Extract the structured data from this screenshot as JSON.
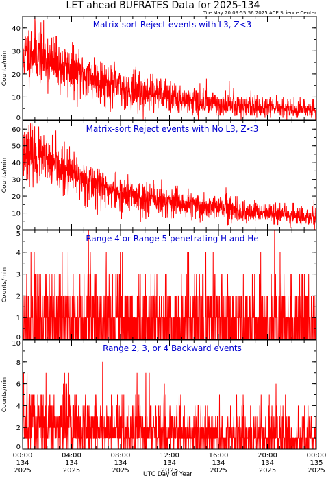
{
  "header": {
    "title": "LET ahead BUFRATES Data for 2025-134",
    "timestamp": "Tue May 20 09:55:56 2025 ACE Science Center"
  },
  "xaxis": {
    "label": "UTC Day of Year",
    "ticks": [
      {
        "time": "00:00",
        "doy": "134",
        "year": "2025"
      },
      {
        "time": "04:00",
        "doy": "134",
        "year": "2025"
      },
      {
        "time": "08:00",
        "doy": "134",
        "year": "2025"
      },
      {
        "time": "12:00",
        "doy": "134",
        "year": "2025"
      },
      {
        "time": "16:00",
        "doy": "134",
        "year": "2025"
      },
      {
        "time": "20:00",
        "doy": "134",
        "year": "2025"
      },
      {
        "time": "00:00",
        "doy": "135",
        "year": "2025"
      }
    ]
  },
  "colors": {
    "series": "#ff0000",
    "panel_title": "#0000d0",
    "axes": "#000000"
  },
  "chart_data": [
    {
      "type": "line",
      "title": "Matrix-sort Reject events with L3, Z<3",
      "ylabel": "Counts/min",
      "xlim_hours": [
        0,
        24
      ],
      "ylim": [
        0,
        45
      ],
      "yticks": [
        0,
        10,
        20,
        30,
        40
      ],
      "trend": {
        "x_hours": [
          0,
          1,
          2,
          4,
          6,
          8,
          10,
          12,
          14,
          16,
          18,
          20,
          22,
          24
        ],
        "y": [
          28,
          30,
          26,
          21,
          18,
          14,
          12,
          10,
          8,
          7,
          6,
          5.5,
          5,
          4
        ]
      }
    },
    {
      "type": "line",
      "title": "Matrix-sort Reject events with No L3, Z<3",
      "ylabel": "Counts/min",
      "xlim_hours": [
        0,
        24
      ],
      "ylim": [
        0,
        65
      ],
      "yticks": [
        0,
        10,
        20,
        30,
        40,
        50,
        60
      ],
      "trend": {
        "x_hours": [
          0,
          0.5,
          1,
          2,
          4,
          6,
          8,
          10,
          12,
          14,
          16,
          18,
          20,
          22,
          24
        ],
        "y": [
          45,
          47,
          44,
          40,
          33,
          27,
          21,
          19,
          16,
          14,
          13,
          11,
          10,
          9,
          7
        ]
      }
    },
    {
      "type": "line",
      "title": "Range 4 or Range 5 penetrating H and He",
      "ylabel": "Counts/min",
      "xlim_hours": [
        0,
        24
      ],
      "ylim": [
        0,
        5
      ],
      "yticks": [
        0,
        1,
        2,
        3,
        4,
        5
      ],
      "trend": {
        "x_hours": [
          0,
          24
        ],
        "y": [
          0.9,
          0.9
        ]
      }
    },
    {
      "type": "line",
      "title": "Range 2, 3, or 4 Backward events",
      "ylabel": "Counts/min",
      "xlim_hours": [
        0,
        24
      ],
      "ylim": [
        0,
        10
      ],
      "yticks": [
        0,
        2,
        4,
        6,
        8,
        10
      ],
      "trend": {
        "x_hours": [
          0,
          1,
          4,
          8,
          12,
          16,
          20,
          24
        ],
        "y": [
          2.6,
          2.4,
          2.1,
          1.8,
          1.5,
          1.3,
          1.2,
          1.1
        ]
      }
    }
  ]
}
